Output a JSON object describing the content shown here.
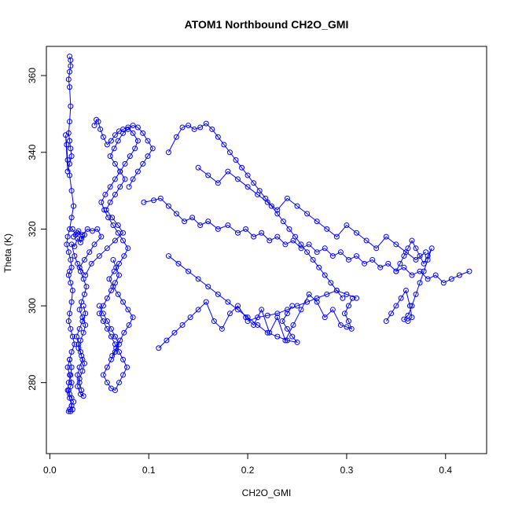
{
  "chart_data": {
    "type": "scatter",
    "title": "ATOM1 Northbound CH2O_GMI",
    "xlabel": "CH2O_GMI",
    "ylabel": "Theta (K)",
    "xlim": [
      -0.0035,
      0.4415
    ],
    "ylim": [
      261.5,
      367.6
    ],
    "x_ticks": [
      0.0,
      0.1,
      0.2,
      0.3,
      0.4
    ],
    "x_tick_labels": [
      "0.0",
      "0.1",
      "0.2",
      "0.3",
      "0.4"
    ],
    "y_ticks": [
      280,
      300,
      320,
      340,
      360
    ],
    "y_tick_labels": [
      "280",
      "300",
      "320",
      "340",
      "360"
    ],
    "grid": false,
    "legend": "none",
    "connected": true,
    "marker": "open-circle",
    "color": "#0000ff",
    "series": [
      {
        "x": [
          0.02,
          0.021,
          0.021,
          0.02,
          0.019,
          0.02,
          0.021,
          0.02,
          0.019,
          0.02,
          0.021,
          0.022,
          0.02,
          0.018,
          0.016,
          0.017,
          0.018,
          0.02,
          0.022,
          0.024,
          0.022,
          0.02,
          0.018,
          0.017,
          0.019,
          0.021,
          0.022,
          0.02,
          0.019,
          0.021,
          0.023,
          0.022,
          0.02,
          0.019,
          0.021,
          0.023,
          0.025,
          0.022,
          0.02,
          0.018,
          0.02,
          0.022,
          0.021,
          0.019,
          0.02,
          0.022,
          0.024,
          0.022,
          0.02,
          0.019,
          0.021,
          0.023,
          0.022,
          0.02,
          0.018,
          0.019,
          0.021,
          0.022,
          0.02
        ],
        "y": [
          365.0,
          364.0,
          362.5,
          361.0,
          359.0,
          357.0,
          352.0,
          348.0,
          345.0,
          343.0,
          341.0,
          339.0,
          337.0,
          335.0,
          344.5,
          342.0,
          338.0,
          334.0,
          330.0,
          326.0,
          323.0,
          320.0,
          318.0,
          316.0,
          314.0,
          312.0,
          310.0,
          309.0,
          308.0,
          306.0,
          304.0,
          301.0,
          298.0,
          296.0,
          294.0,
          292.0,
          290.0,
          288.0,
          286.0,
          284.0,
          282.0,
          280.0,
          279.0,
          278.0,
          277.0,
          276.0,
          275.0,
          274.0,
          273.0,
          272.5,
          272.5,
          273.0,
          274.0,
          276.0,
          278.0,
          280.0,
          282.0,
          284.0,
          286.0
        ]
      },
      {
        "x": [
          0.023,
          0.026,
          0.029,
          0.032,
          0.035,
          0.031,
          0.028,
          0.025,
          0.022,
          0.025,
          0.028,
          0.031,
          0.034,
          0.037,
          0.035,
          0.032,
          0.03,
          0.033,
          0.036,
          0.034,
          0.031,
          0.029,
          0.032,
          0.035,
          0.033,
          0.03,
          0.028,
          0.031,
          0.034,
          0.032,
          0.03,
          0.028,
          0.03,
          0.033,
          0.031,
          0.029,
          0.027,
          0.03,
          0.033,
          0.036,
          0.034
        ],
        "y": [
          320.0,
          318.5,
          319.5,
          317.5,
          318.5,
          316.5,
          317.5,
          315.5,
          316.0,
          313.0,
          311.0,
          309.0,
          307.0,
          305.0,
          303.0,
          301.0,
          299.0,
          297.0,
          295.0,
          293.0,
          291.0,
          289.0,
          287.0,
          285.0,
          283.0,
          281.0,
          279.0,
          277.0,
          276.5,
          278.0,
          280.0,
          282.0,
          284.0,
          286.0,
          288.0,
          290.0,
          292.0,
          294.0,
          296.0,
          298.0,
          300.0
        ]
      },
      {
        "x": [
          0.024,
          0.028,
          0.033,
          0.038,
          0.043,
          0.048,
          0.052,
          0.045,
          0.04,
          0.035,
          0.03,
          0.036,
          0.042,
          0.05,
          0.058,
          0.066,
          0.074,
          0.069,
          0.063,
          0.057,
          0.061,
          0.066,
          0.071,
          0.076,
          0.071,
          0.066,
          0.061,
          0.065,
          0.069,
          0.074,
          0.079,
          0.084,
          0.089,
          0.094,
          0.099,
          0.104,
          0.099,
          0.094,
          0.089,
          0.084,
          0.08
        ],
        "y": [
          318.0,
          319.0,
          318.5,
          320.0,
          319.5,
          320.0,
          318.0,
          316.0,
          314.0,
          312.0,
          310.0,
          308.0,
          311.0,
          313.0,
          315.0,
          317.0,
          319.0,
          321.0,
          323.0,
          325.0,
          327.0,
          329.0,
          331.0,
          333.0,
          335.0,
          337.0,
          339.0,
          341.0,
          343.0,
          345.0,
          346.0,
          347.0,
          346.5,
          345.0,
          343.0,
          341.0,
          339.0,
          337.0,
          335.0,
          333.0,
          331.0
        ]
      },
      {
        "x": [
          0.045,
          0.047,
          0.049,
          0.051,
          0.054,
          0.058,
          0.062,
          0.066,
          0.07,
          0.074,
          0.079,
          0.084,
          0.089,
          0.086,
          0.081,
          0.076,
          0.071,
          0.066,
          0.061,
          0.056,
          0.052,
          0.055,
          0.059,
          0.064,
          0.069,
          0.074,
          0.079,
          0.075,
          0.07,
          0.065,
          0.06,
          0.064,
          0.069,
          0.074,
          0.079,
          0.084,
          0.08,
          0.075,
          0.071,
          0.067,
          0.063
        ],
        "y": [
          347.0,
          348.5,
          348.0,
          346.0,
          344.0,
          342.0,
          343.0,
          344.5,
          345.5,
          346.0,
          346.5,
          345.0,
          343.0,
          341.0,
          339.0,
          337.0,
          335.0,
          333.0,
          331.0,
          329.0,
          327.0,
          325.0,
          323.0,
          321.0,
          319.0,
          317.0,
          315.0,
          313.0,
          311.0,
          309.0,
          307.0,
          305.0,
          303.0,
          301.0,
          299.0,
          297.0,
          295.0,
          293.0,
          291.0,
          289.0,
          287.0
        ]
      },
      {
        "x": [
          0.05,
          0.054,
          0.058,
          0.062,
          0.066,
          0.07,
          0.066,
          0.062,
          0.058,
          0.054,
          0.058,
          0.062,
          0.066,
          0.07,
          0.074,
          0.078,
          0.074,
          0.07,
          0.066,
          0.062,
          0.058,
          0.054,
          0.05,
          0.054,
          0.058,
          0.062,
          0.066,
          0.07,
          0.067,
          0.064
        ],
        "y": [
          300.0,
          298.0,
          296.0,
          294.0,
          292.0,
          290.0,
          288.0,
          286.0,
          284.0,
          282.0,
          280.0,
          278.5,
          278.0,
          280.0,
          282.0,
          284.0,
          286.0,
          288.0,
          290.0,
          292.0,
          294.0,
          296.0,
          298.0,
          300.0,
          302.0,
          304.0,
          306.0,
          308.0,
          310.0,
          312.0
        ]
      },
      {
        "x": [
          0.095,
          0.105,
          0.112,
          0.12,
          0.128,
          0.136,
          0.144,
          0.152,
          0.16,
          0.17,
          0.18,
          0.19,
          0.198,
          0.206,
          0.214,
          0.222,
          0.23,
          0.238,
          0.246,
          0.254,
          0.262,
          0.27,
          0.278,
          0.286,
          0.294,
          0.302,
          0.31,
          0.318,
          0.326,
          0.334,
          0.342,
          0.35,
          0.358,
          0.366,
          0.374,
          0.382,
          0.39,
          0.398,
          0.406,
          0.414,
          0.424
        ],
        "y": [
          327.0,
          327.5,
          328.0,
          326.0,
          324.0,
          322.0,
          323.0,
          321.0,
          322.0,
          320.0,
          321.0,
          319.0,
          320.0,
          318.0,
          319.0,
          317.0,
          318.0,
          316.0,
          317.0,
          315.0,
          316.0,
          314.0,
          315.0,
          313.0,
          314.0,
          312.0,
          313.0,
          311.0,
          312.0,
          310.0,
          311.0,
          309.0,
          310.0,
          308.0,
          309.0,
          307.0,
          308.0,
          306.0,
          307.0,
          308.0,
          309.0
        ]
      },
      {
        "x": [
          0.12,
          0.128,
          0.134,
          0.14,
          0.146,
          0.152,
          0.158,
          0.164,
          0.17,
          0.176,
          0.182,
          0.188,
          0.194,
          0.2,
          0.206,
          0.212,
          0.218,
          0.224,
          0.23,
          0.236,
          0.242,
          0.248,
          0.254,
          0.26,
          0.266,
          0.272,
          0.278,
          0.284,
          0.29,
          0.296
        ],
        "y": [
          340.0,
          344.0,
          346.5,
          347.0,
          346.0,
          346.5,
          347.5,
          346.0,
          344.0,
          342.0,
          340.0,
          338.0,
          336.0,
          334.0,
          332.0,
          330.0,
          328.0,
          326.0,
          324.0,
          322.0,
          320.0,
          318.0,
          316.0,
          314.0,
          312.0,
          310.0,
          308.0,
          306.0,
          304.0,
          302.0
        ]
      },
      {
        "x": [
          0.11,
          0.118,
          0.126,
          0.134,
          0.142,
          0.15,
          0.158,
          0.166,
          0.174,
          0.182,
          0.19,
          0.198,
          0.206,
          0.214,
          0.222,
          0.23,
          0.238,
          0.246,
          0.254,
          0.262,
          0.27,
          0.278,
          0.286,
          0.294,
          0.3,
          0.305,
          0.302,
          0.298,
          0.302,
          0.306
        ],
        "y": [
          289.0,
          291.0,
          293.0,
          295.0,
          297.0,
          299.0,
          301.0,
          296.0,
          294.0,
          298.0,
          300.0,
          297.0,
          295.0,
          299.0,
          293.0,
          297.0,
          291.0,
          295.0,
          299.0,
          303.0,
          301.0,
          297.0,
          299.0,
          295.0,
          294.5,
          294.0,
          296.0,
          298.0,
          300.0,
          302.0
        ]
      },
      {
        "x": [
          0.34,
          0.345,
          0.35,
          0.355,
          0.36,
          0.364,
          0.366,
          0.362,
          0.358,
          0.362,
          0.366,
          0.37,
          0.374,
          0.378,
          0.382,
          0.386,
          0.382,
          0.378,
          0.374,
          0.37,
          0.366,
          0.362,
          0.358,
          0.354,
          0.35
        ],
        "y": [
          296.0,
          298.0,
          300.0,
          302.0,
          304.0,
          300.0,
          297.0,
          296.0,
          296.5,
          297.5,
          300.0,
          303.0,
          306.0,
          309.0,
          312.0,
          315.0,
          313.0,
          311.0,
          313.0,
          315.0,
          317.0,
          315.0,
          313.0,
          311.0,
          309.0
        ]
      },
      {
        "x": [
          0.15,
          0.16,
          0.17,
          0.18,
          0.19,
          0.2,
          0.21,
          0.22,
          0.23,
          0.24,
          0.25,
          0.26,
          0.27,
          0.28,
          0.29,
          0.3,
          0.31,
          0.32,
          0.33,
          0.34,
          0.35,
          0.36,
          0.37,
          0.38
        ],
        "y": [
          336.0,
          334.0,
          332.0,
          335.0,
          333.0,
          331.0,
          329.0,
          327.0,
          325.0,
          328.0,
          326.0,
          324.0,
          322.0,
          320.0,
          318.0,
          321.0,
          319.0,
          317.0,
          315.0,
          318.0,
          316.0,
          314.0,
          312.0,
          314.0
        ]
      },
      {
        "x": [
          0.12,
          0.13,
          0.14,
          0.15,
          0.16,
          0.17,
          0.18,
          0.19,
          0.2,
          0.21,
          0.22,
          0.23,
          0.24,
          0.25,
          0.245,
          0.24,
          0.235,
          0.24,
          0.245
        ],
        "y": [
          313.0,
          311.0,
          309.0,
          307.0,
          305.0,
          303.0,
          301.0,
          299.0,
          297.0,
          295.0,
          293.0,
          292.0,
          291.0,
          290.5,
          292.0,
          294.0,
          296.0,
          298.0,
          300.0
        ]
      },
      {
        "x": [
          0.2,
          0.21,
          0.22,
          0.23,
          0.24,
          0.25,
          0.26,
          0.27,
          0.28,
          0.29,
          0.3,
          0.31
        ],
        "y": [
          296.0,
          297.0,
          297.5,
          298.0,
          299.0,
          300.0,
          301.0,
          302.0,
          303.0,
          304.0,
          303.0,
          302.0
        ]
      }
    ]
  }
}
